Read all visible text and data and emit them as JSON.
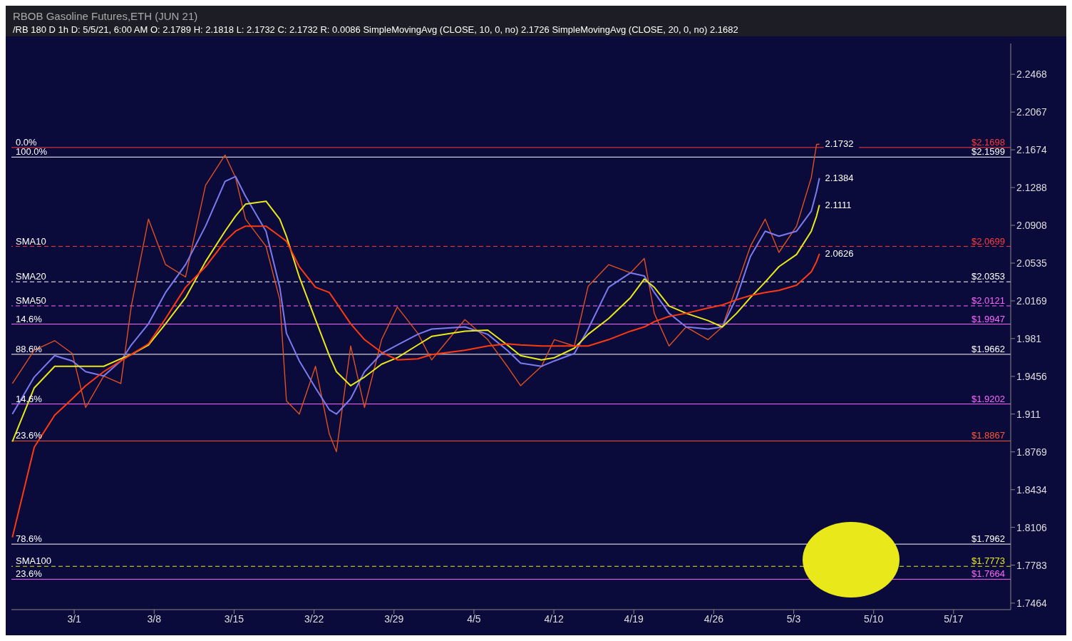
{
  "chart_data": {
    "type": "line",
    "title": "RBOB Gasoline Futures,ETH (JUN 21)",
    "subtitle": "/RB 180 D 1h   D: 5/5/21, 6:00 AM   O: 2.1789   H: 2.1818   L: 2.1732   C: 2.1732   R: 0.0086   SimpleMovingAvg (CLOSE, 10, 0, no) 2.1726   SimpleMovingAvg (CLOSE, 20, 0, no) 2.1682",
    "x": [
      "--02-23T14:00",
      "--02-25T12:00",
      "--02-27T07:00",
      "--02-28T20:00",
      "--03-02T00:00",
      "--03-03T14:00",
      "--03-05T02:00",
      "--03-06T00:00",
      "--03-07T12:00",
      "--03-09T00:00",
      "--03-10T18:00",
      "--03-12T12:00",
      "--03-14T05:00",
      "--03-15T03:00",
      "--03-16T00:00",
      "--03-17T19:00",
      "--03-19T00:00",
      "--03-19T14:00",
      "--03-20T17:00",
      "--03-22T03:00",
      "--03-23T08:00",
      "--03-23T23:00",
      "--03-25T05:00",
      "--03-26T10:00",
      "--03-27T22:00",
      "--03-29T07:00",
      "--03-31T02:00",
      "--04-01T07:00",
      "--04-04T05:00",
      "--04-06T05:00",
      "--04-07T22:00",
      "--04-09T02:00",
      "--04-10T22:00",
      "--04-12T01:00",
      "--04-13T19:00",
      "--04-15T00:00",
      "--04-16T19:00",
      "--04-18T17:00",
      "--04-19T22:00",
      "--04-20T19:00",
      "--04-22T02:00",
      "--04-23T14:00",
      "--04-25T12:00",
      "--04-26T18:00",
      "--04-28T00:00",
      "--04-29T05:00",
      "--04-30T12:00",
      "--05-01T17:00",
      "--05-03T06:00",
      "--05-04T13:00",
      "--05-05T00:00",
      "--05-05T06:00"
    ],
    "series": [
      {
        "color": "#e05020",
        "values": [
          1.939,
          1.97,
          1.979,
          1.967,
          1.917,
          1.946,
          1.939,
          2.012,
          2.097,
          2.052,
          2.04,
          2.131,
          2.162,
          2.139,
          2.097,
          2.07,
          2.018,
          1.923,
          1.911,
          1.955,
          1.893,
          1.877,
          1.974,
          1.917,
          1.98,
          2.011,
          1.986,
          1.961,
          1.999,
          1.98,
          1.955,
          1.937,
          1.955,
          1.98,
          1.974,
          2.031,
          2.052,
          2.044,
          2.058,
          2.005,
          1.974,
          1.992,
          1.98,
          1.992,
          2.031,
          2.07,
          2.097,
          2.064,
          2.09,
          2.139,
          2.173,
          2.1732
        ]
      },
      {
        "color": "#7b7bf0",
        "values": [
          1.911,
          1.945,
          1.965,
          1.96,
          1.95,
          1.946,
          1.96,
          1.975,
          1.995,
          2.025,
          2.052,
          2.09,
          2.135,
          2.14,
          2.12,
          2.085,
          2.03,
          1.986,
          1.96,
          1.935,
          1.915,
          1.911,
          1.925,
          1.95,
          1.967,
          1.975,
          1.985,
          1.99,
          1.992,
          1.985,
          1.97,
          1.958,
          1.955,
          1.96,
          1.967,
          1.99,
          2.03,
          2.044,
          2.041,
          2.025,
          2.005,
          1.992,
          1.99,
          1.992,
          2.02,
          2.06,
          2.085,
          2.08,
          2.085,
          2.105,
          2.125,
          2.1384
        ]
      },
      {
        "color": "#e8e81a",
        "values": [
          1.886,
          1.935,
          1.955,
          1.955,
          1.955,
          1.955,
          1.962,
          1.966,
          1.975,
          1.995,
          2.02,
          2.055,
          2.085,
          2.1,
          2.112,
          2.115,
          2.097,
          2.08,
          2.04,
          1.999,
          1.965,
          1.95,
          1.937,
          1.945,
          1.957,
          1.963,
          1.975,
          1.983,
          1.988,
          1.989,
          1.975,
          1.965,
          1.961,
          1.963,
          1.972,
          1.985,
          2.0,
          2.02,
          2.038,
          2.03,
          2.012,
          2.005,
          1.998,
          1.992,
          2.005,
          2.02,
          2.035,
          2.05,
          2.062,
          2.085,
          2.1,
          2.1111
        ]
      },
      {
        "color": "#ff3a10",
        "values": [
          1.802,
          1.881,
          1.91,
          1.925,
          1.937,
          1.95,
          1.96,
          1.966,
          1.976,
          2.0,
          2.03,
          2.05,
          2.075,
          2.085,
          2.09,
          2.09,
          2.08,
          2.075,
          2.05,
          2.03,
          2.025,
          2.015,
          1.995,
          1.98,
          1.968,
          1.961,
          1.962,
          1.966,
          1.97,
          1.974,
          1.976,
          1.975,
          1.974,
          1.974,
          1.974,
          1.974,
          1.98,
          1.988,
          1.992,
          1.997,
          2.002,
          2.005,
          2.01,
          2.013,
          2.018,
          2.022,
          2.025,
          2.027,
          2.032,
          2.045,
          2.055,
          2.0626
        ]
      }
    ],
    "log": "y",
    "ylim": [
      1.741,
      2.28
    ],
    "yticks": [
      1.7464,
      1.7783,
      1.8106,
      1.8434,
      1.8769,
      1.911,
      1.9456,
      1.981,
      2.0169,
      2.0535,
      2.0908,
      2.1288,
      2.1674,
      2.2067,
      2.2468
    ],
    "xlim": [
      "--02-23T12:00",
      "--05-22T00:00"
    ],
    "xticks": [
      {
        "value": "--03-01",
        "label": "3/1"
      },
      {
        "value": "--03-08",
        "label": "3/8"
      },
      {
        "value": "--03-15",
        "label": "3/15"
      },
      {
        "value": "--03-22",
        "label": "3/22"
      },
      {
        "value": "--03-29",
        "label": "3/29"
      },
      {
        "value": "--04-05",
        "label": "4/5"
      },
      {
        "value": "--04-12",
        "label": "4/12"
      },
      {
        "value": "--04-19",
        "label": "4/19"
      },
      {
        "value": "--04-26",
        "label": "4/26"
      },
      {
        "value": "--05-03",
        "label": "5/3"
      },
      {
        "value": "--05-10",
        "label": "5/10"
      },
      {
        "value": "--05-17",
        "label": "5/17"
      }
    ],
    "ref_lines": [
      {
        "axis": "y",
        "value": 2.1698,
        "label": "$2.1698",
        "color": "#ff3b3b",
        "line_style": "solid"
      },
      {
        "axis": "y",
        "value": 2.1599,
        "label": "$2.1599",
        "color": "#ffffff",
        "line_style": "solid"
      },
      {
        "axis": "y",
        "value": 2.0699,
        "label": "$2.0699",
        "color": "#ff3b3b",
        "line_style": "dashed"
      },
      {
        "axis": "y",
        "value": 2.0353,
        "label": "$2.0353",
        "color": "#ffffff",
        "line_style": "dashed"
      },
      {
        "axis": "y",
        "value": 2.0121,
        "label": "$2.0121",
        "color": "#ff66ff",
        "line_style": "dashed"
      },
      {
        "axis": "y",
        "value": 1.9947,
        "label": "$1.9947",
        "color": "#ff66ff",
        "line_style": "solid"
      },
      {
        "axis": "y",
        "value": 1.9662,
        "label": "$1.9662",
        "color": "#ffffff",
        "line_style": "solid"
      },
      {
        "axis": "y",
        "value": 1.9202,
        "label": "$1.9202",
        "color": "#ff66ff",
        "line_style": "solid"
      },
      {
        "axis": "y",
        "value": 1.8867,
        "label": "$1.8867",
        "color": "#ff5533",
        "line_style": "solid"
      },
      {
        "axis": "y",
        "value": 1.7962,
        "label": "$1.7962",
        "color": "#ffffff",
        "line_style": "solid"
      },
      {
        "axis": "y",
        "value": 1.7773,
        "label": "$1.7773",
        "color": "#e8e81a",
        "line_style": "dashed"
      },
      {
        "axis": "y",
        "value": 1.7664,
        "label": "$1.7664",
        "color": "#ff66ff",
        "line_style": "solid"
      }
    ],
    "annotations": [
      {
        "text": "0.0%",
        "x": "--02-23T12:00",
        "y": 2.1698
      },
      {
        "text": "100.0%",
        "x": "--02-23T12:00",
        "y": 2.1599
      },
      {
        "text": "SMA10",
        "x": "--02-23T12:00",
        "y": 2.0699
      },
      {
        "text": "SMA20",
        "x": "--02-23T12:00",
        "y": 2.0353
      },
      {
        "text": "SMA50",
        "x": "--02-23T12:00",
        "y": 2.0121
      },
      {
        "text": "14.6%",
        "x": "--02-23T12:00",
        "y": 1.9947
      },
      {
        "text": "88.6%",
        "x": "--02-23T12:00",
        "y": 1.9662
      },
      {
        "text": "14.6%",
        "x": "--02-23T12:00",
        "y": 1.9202
      },
      {
        "text": "23.6%",
        "x": "--02-23T12:00",
        "y": 1.8867
      },
      {
        "text": "78.6%",
        "x": "--02-23T12:00",
        "y": 1.7962
      },
      {
        "text": "SMA100",
        "x": "--02-23T12:00",
        "y": 1.7773
      },
      {
        "text": "23.6%",
        "x": "--02-23T12:00",
        "y": 1.7664
      },
      {
        "text": "2.1732",
        "x": "--05-05T06:00",
        "y": 2.1732
      },
      {
        "text": "2.1384",
        "x": "--05-05T06:00",
        "y": 2.1384
      },
      {
        "text": "2.1111",
        "x": "--05-05T06:00",
        "y": 2.1111
      },
      {
        "text": "2.0626",
        "x": "--05-05T06:00",
        "y": 2.0626
      }
    ],
    "legend": false,
    "grid": false,
    "marker": "none",
    "line_style": "solid"
  }
}
